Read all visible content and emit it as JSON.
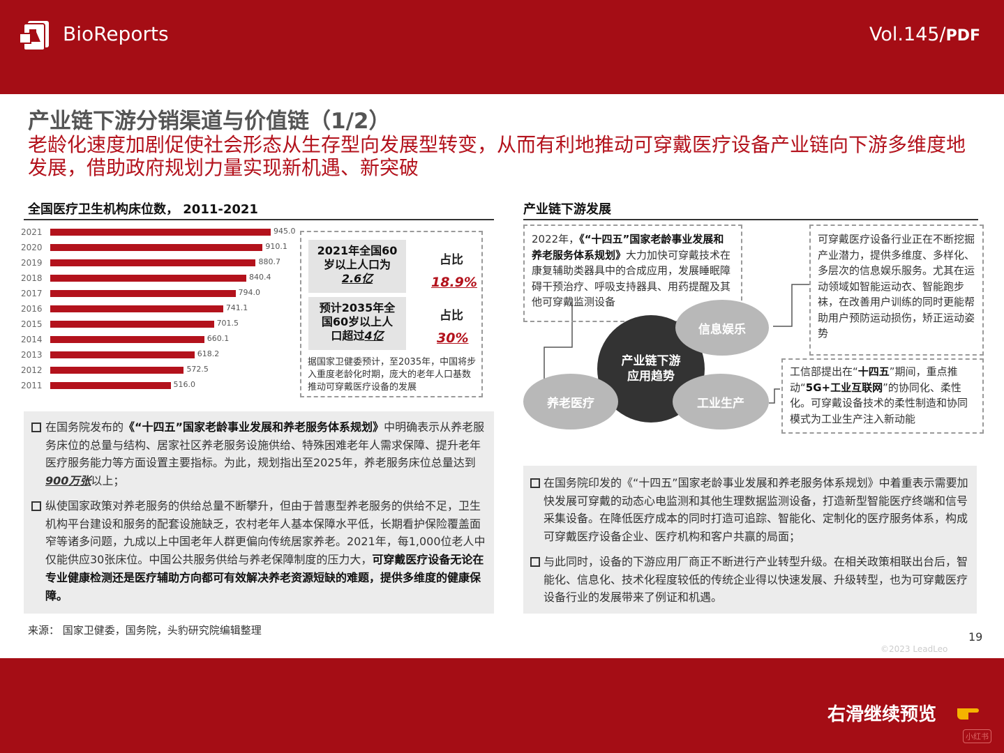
{
  "header": {
    "brand": "BioReports",
    "vol": "Vol.145/",
    "vol_suffix": "PDF"
  },
  "page": {
    "title": "产业链下游分销渠道与价值链（1/2）",
    "subtitle": "老龄化速度加剧促使社会形态从生存型向发展型转变，从而有利地推动可穿戴医疗设备产业链向下游多维度地发展，借助政府规划力量实现新机遇、新突破"
  },
  "left": {
    "section_title": "全国医疗卫生机构床位数， 2011-2021",
    "callout": {
      "stat1": [
        "2021年全国60",
        "岁以上人口为",
        "2.6亿"
      ],
      "ratio_label": "占比",
      "ratio1": "18.9%",
      "stat2": [
        "预计2035年全",
        "国60岁以上人",
        "口超过",
        "4亿"
      ],
      "ratio2": "30%",
      "note": "据国家卫健委预计，至2035年，中国将步入重度老龄化时期，庞大的老年人口基数推动可穿戴医疗设备的发展"
    },
    "bullet1": {
      "pre": "在国务院发布的",
      "bold": "《“十四五”国家老龄事业发展和养老服务体系规划》",
      "mid": "中明确表示从养老服务床位的总量与结构、居家社区养老服务设施供给、特殊困难老年人需求保障、提升老年医疗服务能力等方面设置主要指标。为此，规划指出至2025年，养老服务床位总量达到",
      "num": "900万张",
      "post": "以上；"
    },
    "bullet2": {
      "pre": "纵使国家政策对养老服务的供给总量不断攀升，但由于普惠型养老服务的供给不足，卫生机构平台建设和服务的配套设施缺乏，农村老年人基本保障水平低，长期看护保险覆盖面窄等诸多问题，九成以上中国老年人群更偏向传统居家养老。2021年，每1,000位老人中仅能供应30张床位。中国公共服务供给与养老保障制度的压力大，",
      "bold": "可穿戴医疗设备无论在专业健康检测还是医疗辅助方向都可有效解决养老资源短缺的难题，提供多维度的健康保障。"
    },
    "source": "来源： 国家卫健委，国务院，头豹研究院编辑整理"
  },
  "chart_data": {
    "type": "bar",
    "title": "全国医疗卫生机构床位数， 2011-2021",
    "categories": [
      "2021",
      "2020",
      "2019",
      "2018",
      "2017",
      "2016",
      "2015",
      "2014",
      "2013",
      "2012",
      "2011"
    ],
    "values": [
      945.0,
      910.1,
      880.7,
      840.4,
      794.0,
      741.1,
      701.5,
      660.1,
      618.2,
      572.5,
      516.0
    ],
    "labels": [
      "945.0",
      "910.1",
      "880.7",
      "840.4",
      "794.0",
      "741.1",
      "701.5",
      "660.1",
      "618.2",
      "572.5",
      "516.0"
    ],
    "orientation": "horizontal",
    "color": "#b3121c",
    "xlim": [
      0,
      945.0
    ]
  },
  "right": {
    "section_title": "产业链下游发展",
    "box1": {
      "pre": "2022年，",
      "bold": "《“十四五”国家老龄事业发展和养老服务体系规划》",
      "post": "大力加快可穿戴技术在康复辅助类器具中的合成应用，发展睡眠障碍干预治疗、呼吸支持器具、用药提醒及其他可穿戴监测设备"
    },
    "box2": "可穿戴医疗设备行业正在不断挖掘产业潜力，提供多维度、多样化、多层次的信息娱乐服务。尤其在运动领域如智能运动衣、智能跑步袜，在改善用户训练的同时更能帮助用户预防运动损伤，矫正运动姿势",
    "box3": {
      "pre": "工信部提出在“",
      "b1": "十四五",
      "mid": "”期间，重点推动“",
      "b2": "5G+工业互联网",
      "post": "”的协同化、柔性化。可穿戴设备技术的柔性制造和协同模式为工业生产注入新动能"
    },
    "circles": {
      "center": [
        "产业链下游",
        "应用趋势"
      ],
      "c1": "信息娱乐",
      "c2": "养老医疗",
      "c3": "工业生产"
    },
    "bullet1": "在国务院印发的《“十四五”国家老龄事业发展和养老服务体系规划》中着重表示需要加快发展可穿戴的动态心电监测和其他生理数据监测设备，打造新型智能医疗终端和信号采集设备。在降低医疗成本的同时打造可追踪、智能化、定制化的医疗服务体系，构成可穿戴医疗设备企业、医疗机构和客户共赢的局面；",
    "bullet2": "与此同时，设备的下游应用厂商正不断进行产业转型升级。在相关政策相联出台后，智能化、信息化、技术化程度较低的传统企业得以快速发展、升级转型，也为可穿戴医疗设备行业的发展带来了例证和机遇。"
  },
  "footer": {
    "page_num": "19",
    "copyright": "©2023 LeadLeo",
    "swipe": "右滑继续预览",
    "watermark": "小红书"
  }
}
